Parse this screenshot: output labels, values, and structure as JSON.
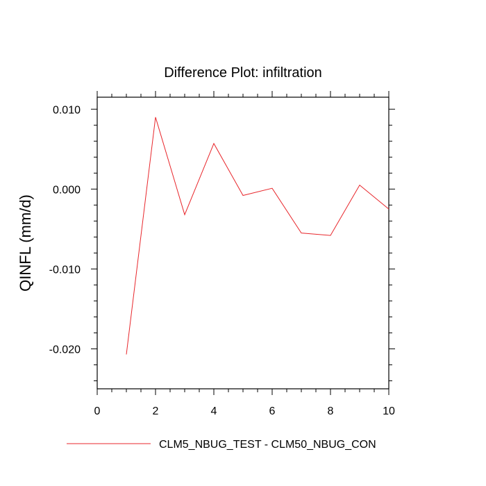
{
  "chart_data": {
    "type": "line",
    "title": "Difference Plot: infiltration",
    "xlabel": "",
    "ylabel": "QINFL  (mm/d)",
    "xlim": [
      0,
      10
    ],
    "ylim": [
      -0.025,
      0.0115
    ],
    "x_ticks": [
      0,
      2,
      4,
      6,
      8,
      10
    ],
    "x_tick_labels": [
      "0",
      "2",
      "4",
      "6",
      "8",
      "10"
    ],
    "y_ticks": [
      0.01,
      0.0,
      -0.01,
      -0.02
    ],
    "y_tick_labels": [
      "0.010",
      "0.000",
      "-0.010",
      "-0.020"
    ],
    "grid": false,
    "legend_position": "bottom",
    "series": [
      {
        "name": "CLM5_NBUG_TEST - CLM50_NBUG_CON",
        "color": "#e8262b",
        "x": [
          1,
          2,
          3,
          4,
          5,
          6,
          7,
          8,
          9,
          10
        ],
        "values": [
          -0.0207,
          0.009,
          -0.0032,
          0.0057,
          -0.0008,
          0.0001,
          -0.0055,
          -0.0058,
          0.0005,
          -0.0025
        ]
      }
    ]
  }
}
